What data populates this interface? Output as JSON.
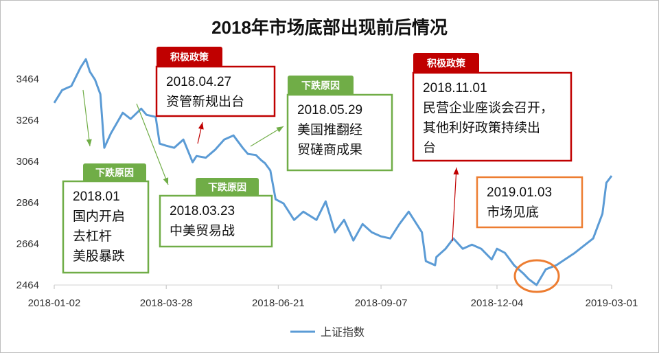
{
  "chart_data": {
    "type": "line",
    "title": "2018年市场底部出现前后情况",
    "xlabel": "",
    "ylabel": "",
    "ylim": [
      2464,
      3564
    ],
    "yticks": [
      2464,
      2664,
      2864,
      3064,
      3264,
      3464
    ],
    "xlim": [
      "2018-01-02",
      "2019-03-01"
    ],
    "xticks": [
      "2018-01-02",
      "2018-03-28",
      "2018-06-21",
      "2018-09-07",
      "2018-12-04",
      "2019-03-01"
    ],
    "grid": false,
    "legend_position": "bottom",
    "series": [
      {
        "name": "上证指数",
        "color": "#5b9bd5",
        "x": [
          "2018-01-02",
          "2018-01-08",
          "2018-01-15",
          "2018-01-22",
          "2018-01-26",
          "2018-01-29",
          "2018-02-02",
          "2018-02-06",
          "2018-02-09",
          "2018-02-14",
          "2018-02-23",
          "2018-03-01",
          "2018-03-09",
          "2018-03-13",
          "2018-03-20",
          "2018-03-23",
          "2018-03-28",
          "2018-04-03",
          "2018-04-10",
          "2018-04-17",
          "2018-04-20",
          "2018-04-27",
          "2018-05-04",
          "2018-05-11",
          "2018-05-18",
          "2018-05-25",
          "2018-05-29",
          "2018-06-04",
          "2018-06-08",
          "2018-06-11",
          "2018-06-15",
          "2018-06-19",
          "2018-06-25",
          "2018-07-03",
          "2018-07-10",
          "2018-07-20",
          "2018-07-27",
          "2018-08-03",
          "2018-08-10",
          "2018-08-17",
          "2018-08-24",
          "2018-08-31",
          "2018-09-07",
          "2018-09-14",
          "2018-09-21",
          "2018-09-28",
          "2018-10-08",
          "2018-10-11",
          "2018-10-18",
          "2018-10-19",
          "2018-10-26",
          "2018-11-01",
          "2018-11-08",
          "2018-11-15",
          "2018-11-22",
          "2018-11-30",
          "2018-12-04",
          "2018-12-10",
          "2018-12-17",
          "2018-12-24",
          "2018-12-28",
          "2019-01-03",
          "2019-01-10",
          "2019-01-18",
          "2019-01-25",
          "2019-02-01",
          "2019-02-15",
          "2019-02-22",
          "2019-02-25",
          "2019-03-01"
        ],
        "values": [
          3348,
          3410,
          3430,
          3520,
          3560,
          3500,
          3460,
          3390,
          3130,
          3200,
          3300,
          3270,
          3320,
          3290,
          3280,
          3150,
          3140,
          3130,
          3170,
          3060,
          3090,
          3082,
          3120,
          3170,
          3190,
          3130,
          3100,
          3095,
          3070,
          3055,
          3020,
          2880,
          2860,
          2780,
          2820,
          2780,
          2870,
          2720,
          2780,
          2680,
          2760,
          2720,
          2700,
          2690,
          2760,
          2820,
          2720,
          2580,
          2560,
          2600,
          2640,
          2690,
          2640,
          2660,
          2640,
          2588,
          2640,
          2620,
          2560,
          2520,
          2493,
          2464,
          2540,
          2560,
          2590,
          2620,
          2690,
          2810,
          2960,
          2994
        ]
      }
    ]
  },
  "legend": {
    "label": "上证指数"
  },
  "annotations": [
    {
      "tag": "下跌原因",
      "tag_color": "#70ad47",
      "border_color": "#70ad47",
      "lines": [
        "2018.01",
        "国内开启",
        "去杠杆",
        "美股暴跌"
      ]
    },
    {
      "tag": "下跌原因",
      "tag_color": "#70ad47",
      "border_color": "#70ad47",
      "lines": [
        "2018.03.23",
        "中美贸易战"
      ]
    },
    {
      "tag": "积极政策",
      "tag_color": "#c00000",
      "border_color": "#c00000",
      "lines": [
        "2018.04.27",
        "资管新规出台"
      ]
    },
    {
      "tag": "下跌原因",
      "tag_color": "#70ad47",
      "border_color": "#70ad47",
      "lines": [
        "2018.05.29",
        "美国推翻经",
        "贸磋商成果"
      ]
    },
    {
      "tag": "积极政策",
      "tag_color": "#c00000",
      "border_color": "#c00000",
      "lines": [
        "2018.11.01",
        "民营企业座谈会召开，",
        "其他利好政策持续出",
        "台"
      ]
    },
    {
      "tag": "",
      "tag_color": "",
      "border_color": "#ed7d31",
      "lines": [
        "2019.01.03",
        "市场见底"
      ]
    }
  ]
}
